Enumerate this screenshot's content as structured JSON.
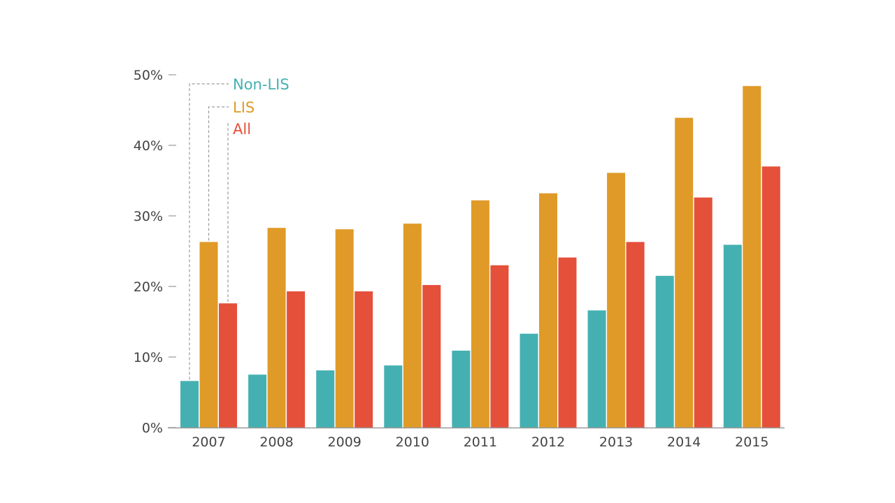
{
  "chart_data": {
    "type": "bar",
    "categories": [
      "2007",
      "2008",
      "2009",
      "2010",
      "2011",
      "2012",
      "2013",
      "2014",
      "2015"
    ],
    "series": [
      {
        "name": "Non-LIS",
        "color": "#45b0b1",
        "values": [
          6.6,
          7.5,
          8.1,
          8.8,
          10.9,
          13.3,
          16.6,
          21.5,
          25.9
        ]
      },
      {
        "name": "LIS",
        "color": "#e09a27",
        "values": [
          26.3,
          28.3,
          28.1,
          28.9,
          32.2,
          33.2,
          36.1,
          43.9,
          48.4
        ]
      },
      {
        "name": "All",
        "color": "#e4503a",
        "values": [
          17.6,
          19.3,
          19.3,
          20.2,
          23.0,
          24.1,
          26.3,
          32.6,
          37.0
        ]
      }
    ],
    "y_ticks": [
      "0%",
      "10%",
      "20%",
      "30%",
      "40%",
      "50%"
    ],
    "ylim": [
      0,
      50
    ],
    "grid": false,
    "legend": "top-left, leader lines to first group",
    "axis_color": "#999999"
  }
}
